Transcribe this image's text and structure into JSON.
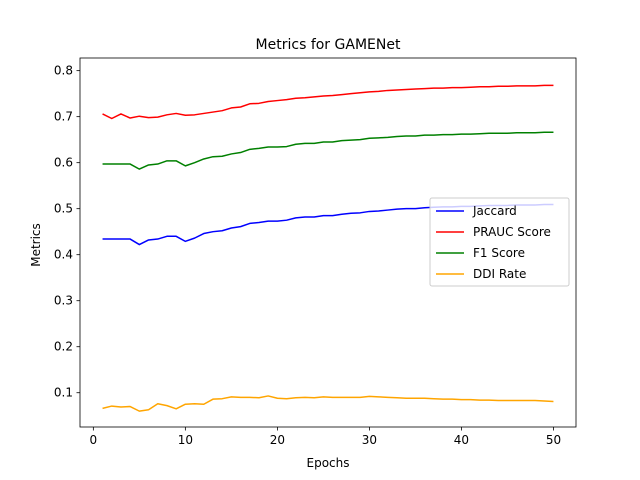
{
  "chart_data": {
    "type": "line",
    "title": "Metrics for GAMENet",
    "xlabel": "Epochs",
    "ylabel": "Metrics",
    "xlim": [
      -1.45,
      52.45
    ],
    "ylim": [
      0.0255,
      0.8275
    ],
    "x_ticks": [
      0,
      10,
      20,
      30,
      40,
      50
    ],
    "y_ticks": [
      0.1,
      0.2,
      0.3,
      0.4,
      0.5,
      0.6,
      0.7,
      0.8
    ],
    "legend_position": "center-right",
    "x": [
      1,
      2,
      3,
      4,
      5,
      6,
      7,
      8,
      9,
      10,
      11,
      12,
      13,
      14,
      15,
      16,
      17,
      18,
      19,
      20,
      21,
      22,
      23,
      24,
      25,
      26,
      27,
      28,
      29,
      30,
      31,
      32,
      33,
      34,
      35,
      36,
      37,
      38,
      39,
      40,
      41,
      42,
      43,
      44,
      45,
      46,
      47,
      48,
      49,
      50
    ],
    "series": [
      {
        "name": "Jaccard",
        "color": "#0000ff",
        "values": [
          0.434,
          0.434,
          0.434,
          0.434,
          0.422,
          0.432,
          0.434,
          0.44,
          0.44,
          0.429,
          0.436,
          0.446,
          0.45,
          0.452,
          0.458,
          0.461,
          0.468,
          0.47,
          0.473,
          0.473,
          0.475,
          0.48,
          0.482,
          0.482,
          0.485,
          0.485,
          0.488,
          0.49,
          0.491,
          0.494,
          0.495,
          0.497,
          0.499,
          0.5,
          0.5,
          0.502,
          0.503,
          0.504,
          0.504,
          0.505,
          0.505,
          0.506,
          0.507,
          0.507,
          0.507,
          0.508,
          0.508,
          0.508,
          0.509,
          0.509
        ]
      },
      {
        "name": "PRAUC Score",
        "color": "#ff0000",
        "values": [
          0.706,
          0.696,
          0.706,
          0.697,
          0.701,
          0.698,
          0.699,
          0.704,
          0.707,
          0.703,
          0.704,
          0.707,
          0.71,
          0.713,
          0.719,
          0.721,
          0.728,
          0.729,
          0.733,
          0.735,
          0.737,
          0.74,
          0.741,
          0.743,
          0.745,
          0.746,
          0.748,
          0.75,
          0.752,
          0.754,
          0.755,
          0.757,
          0.758,
          0.759,
          0.76,
          0.761,
          0.762,
          0.762,
          0.763,
          0.763,
          0.764,
          0.765,
          0.765,
          0.766,
          0.766,
          0.767,
          0.767,
          0.767,
          0.768,
          0.768
        ]
      },
      {
        "name": "F1 Score",
        "color": "#008000",
        "values": [
          0.597,
          0.597,
          0.597,
          0.597,
          0.586,
          0.595,
          0.597,
          0.604,
          0.604,
          0.593,
          0.6,
          0.608,
          0.613,
          0.614,
          0.619,
          0.622,
          0.629,
          0.631,
          0.634,
          0.634,
          0.635,
          0.64,
          0.642,
          0.642,
          0.645,
          0.645,
          0.648,
          0.649,
          0.65,
          0.653,
          0.654,
          0.655,
          0.657,
          0.658,
          0.658,
          0.66,
          0.66,
          0.661,
          0.661,
          0.662,
          0.662,
          0.663,
          0.664,
          0.664,
          0.664,
          0.665,
          0.665,
          0.665,
          0.666,
          0.666
        ]
      },
      {
        "name": "DDI Rate",
        "color": "#ffa500",
        "values": [
          0.066,
          0.071,
          0.069,
          0.07,
          0.06,
          0.063,
          0.076,
          0.072,
          0.065,
          0.075,
          0.076,
          0.075,
          0.086,
          0.087,
          0.091,
          0.09,
          0.09,
          0.089,
          0.093,
          0.088,
          0.087,
          0.089,
          0.09,
          0.089,
          0.091,
          0.09,
          0.09,
          0.09,
          0.09,
          0.092,
          0.091,
          0.09,
          0.089,
          0.088,
          0.088,
          0.088,
          0.087,
          0.086,
          0.086,
          0.085,
          0.085,
          0.084,
          0.084,
          0.083,
          0.083,
          0.083,
          0.083,
          0.083,
          0.082,
          0.081
        ]
      }
    ]
  }
}
